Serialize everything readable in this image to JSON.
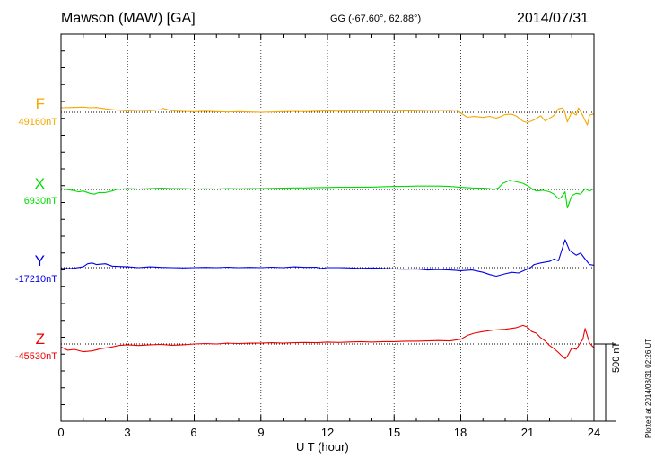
{
  "header": {
    "station": "Mawson (MAW)  [GA]",
    "coords": "GG (-67.60°,  62.88°)",
    "date": "2014/07/31"
  },
  "plotted_note": "Plotted at 2014/08/31 02:26 UT",
  "scale_label": "500 nT",
  "chart_data": {
    "type": "line",
    "xlabel": "U T (hour)",
    "xlim": [
      0,
      24
    ],
    "xticks": [
      0,
      3,
      6,
      9,
      12,
      15,
      18,
      21,
      24
    ],
    "x_tick_labels": [
      "0",
      "3",
      "6",
      "9",
      "12",
      "15",
      "18",
      "21",
      "24"
    ],
    "scale_bar_nT": 500,
    "grid": true,
    "series": [
      {
        "name": "F",
        "baseline_label": "49160nT",
        "baseline_nT": 49160,
        "color": "#f5a800",
        "points": [
          [
            0,
            29
          ],
          [
            0.5,
            31
          ],
          [
            1,
            33
          ],
          [
            1.3,
            29
          ],
          [
            1.6,
            31
          ],
          [
            2,
            22
          ],
          [
            2.5,
            14
          ],
          [
            3,
            9
          ],
          [
            3.5,
            13
          ],
          [
            4,
            10
          ],
          [
            4.5,
            16
          ],
          [
            4.6,
            25
          ],
          [
            4.8,
            17
          ],
          [
            5,
            9
          ],
          [
            5.5,
            6
          ],
          [
            6,
            4
          ],
          [
            6.5,
            7
          ],
          [
            7,
            4
          ],
          [
            7.5,
            2
          ],
          [
            8,
            4
          ],
          [
            8.5,
            2
          ],
          [
            9,
            0
          ],
          [
            9.5,
            2
          ],
          [
            10,
            4
          ],
          [
            10.5,
            6
          ],
          [
            11,
            4
          ],
          [
            11.5,
            7
          ],
          [
            12,
            9
          ],
          [
            12.5,
            7
          ],
          [
            13,
            9
          ],
          [
            13.5,
            10
          ],
          [
            14,
            8
          ],
          [
            14.5,
            10
          ],
          [
            15,
            12
          ],
          [
            15.5,
            8
          ],
          [
            16,
            10
          ],
          [
            16.5,
            12
          ],
          [
            17,
            13
          ],
          [
            17.5,
            11
          ],
          [
            17.8,
            14
          ],
          [
            18,
            -5
          ],
          [
            18.3,
            -32
          ],
          [
            18.6,
            -27
          ],
          [
            19,
            -33
          ],
          [
            19.3,
            -26
          ],
          [
            19.6,
            -38
          ],
          [
            19.8,
            -28
          ],
          [
            20,
            -14
          ],
          [
            20.3,
            -12
          ],
          [
            20.5,
            -24
          ],
          [
            20.8,
            -58
          ],
          [
            21,
            -67
          ],
          [
            21.2,
            -55
          ],
          [
            21.4,
            -42
          ],
          [
            21.6,
            -22
          ],
          [
            21.8,
            -55
          ],
          [
            22,
            -39
          ],
          [
            22.2,
            -20
          ],
          [
            22.4,
            22
          ],
          [
            22.6,
            28
          ],
          [
            22.7,
            -6
          ],
          [
            22.8,
            -62
          ],
          [
            23,
            2
          ],
          [
            23.2,
            -18
          ],
          [
            23.3,
            28
          ],
          [
            23.5,
            -22
          ],
          [
            23.6,
            -53
          ],
          [
            23.7,
            -82
          ],
          [
            23.8,
            -18
          ],
          [
            24,
            -10
          ]
        ]
      },
      {
        "name": "X",
        "baseline_label": "6930nT",
        "baseline_nT": 6930,
        "color": "#00dd00",
        "points": [
          [
            0,
            5
          ],
          [
            0.5,
            -5
          ],
          [
            0.8,
            -15
          ],
          [
            1,
            -10
          ],
          [
            1.3,
            -25
          ],
          [
            1.5,
            -30
          ],
          [
            1.7,
            -20
          ],
          [
            2,
            -20
          ],
          [
            2.3,
            -10
          ],
          [
            2.5,
            0
          ],
          [
            3,
            5
          ],
          [
            3.5,
            3
          ],
          [
            4,
            5
          ],
          [
            4.5,
            8
          ],
          [
            5,
            5
          ],
          [
            5.5,
            6
          ],
          [
            6,
            3
          ],
          [
            6.5,
            4
          ],
          [
            7,
            3
          ],
          [
            7.5,
            6
          ],
          [
            8,
            4
          ],
          [
            8.5,
            5
          ],
          [
            9,
            6
          ],
          [
            9.5,
            7
          ],
          [
            10,
            8
          ],
          [
            10.5,
            10
          ],
          [
            11,
            10
          ],
          [
            11.5,
            12
          ],
          [
            12,
            13
          ],
          [
            12.5,
            14
          ],
          [
            13,
            14
          ],
          [
            13.5,
            15
          ],
          [
            14,
            15
          ],
          [
            14.5,
            18
          ],
          [
            15,
            20
          ],
          [
            15.5,
            20
          ],
          [
            16,
            22
          ],
          [
            16.5,
            22
          ],
          [
            17,
            22
          ],
          [
            17.5,
            20
          ],
          [
            18,
            14
          ],
          [
            18.5,
            10
          ],
          [
            19,
            8
          ],
          [
            19.3,
            5
          ],
          [
            19.5,
            0
          ],
          [
            19.7,
            10
          ],
          [
            19.9,
            40
          ],
          [
            20.2,
            60
          ],
          [
            20.5,
            50
          ],
          [
            20.8,
            40
          ],
          [
            21,
            25
          ],
          [
            21.2,
            5
          ],
          [
            21.4,
            -10
          ],
          [
            21.7,
            -5
          ],
          [
            22,
            -15
          ],
          [
            22.2,
            -30
          ],
          [
            22.4,
            -60
          ],
          [
            22.5,
            -55
          ],
          [
            22.7,
            -15
          ],
          [
            22.8,
            -120
          ],
          [
            23,
            -40
          ],
          [
            23.2,
            -25
          ],
          [
            23.4,
            -30
          ],
          [
            23.6,
            5
          ],
          [
            23.8,
            -10
          ],
          [
            24,
            5
          ]
        ]
      },
      {
        "name": "Y",
        "baseline_label": "-17210nT",
        "baseline_nT": -17210,
        "color": "#0000ee",
        "points": [
          [
            0,
            -5
          ],
          [
            0.5,
            -5
          ],
          [
            1,
            5
          ],
          [
            1.2,
            25
          ],
          [
            1.4,
            30
          ],
          [
            1.6,
            20
          ],
          [
            2,
            25
          ],
          [
            2.3,
            10
          ],
          [
            3,
            5
          ],
          [
            3.5,
            0
          ],
          [
            4,
            5
          ],
          [
            4.5,
            2
          ],
          [
            5,
            0
          ],
          [
            5.5,
            -2
          ],
          [
            6,
            0
          ],
          [
            6.5,
            2
          ],
          [
            7,
            0
          ],
          [
            7.5,
            3
          ],
          [
            8,
            0
          ],
          [
            8.5,
            2
          ],
          [
            9,
            0
          ],
          [
            9.5,
            3
          ],
          [
            10,
            0
          ],
          [
            10.5,
            5
          ],
          [
            11,
            2
          ],
          [
            11.5,
            3
          ],
          [
            11.7,
            -5
          ],
          [
            12,
            0
          ],
          [
            12.5,
            0
          ],
          [
            13,
            -2
          ],
          [
            13.5,
            -5
          ],
          [
            14,
            -2
          ],
          [
            14.5,
            -5
          ],
          [
            15,
            -8
          ],
          [
            15.5,
            -10
          ],
          [
            16,
            -8
          ],
          [
            16.5,
            -15
          ],
          [
            17,
            -12
          ],
          [
            17.5,
            -15
          ],
          [
            18,
            -20
          ],
          [
            18.5,
            -15
          ],
          [
            19,
            -30
          ],
          [
            19.3,
            -45
          ],
          [
            19.6,
            -55
          ],
          [
            20,
            -40
          ],
          [
            20.3,
            -30
          ],
          [
            20.6,
            -35
          ],
          [
            20.9,
            -15
          ],
          [
            21.1,
            -5
          ],
          [
            21.3,
            20
          ],
          [
            21.6,
            30
          ],
          [
            22,
            40
          ],
          [
            22.2,
            55
          ],
          [
            22.4,
            45
          ],
          [
            22.5,
            90
          ],
          [
            22.7,
            180
          ],
          [
            22.9,
            110
          ],
          [
            23.2,
            80
          ],
          [
            23.4,
            95
          ],
          [
            23.6,
            55
          ],
          [
            23.8,
            20
          ],
          [
            24,
            15
          ]
        ]
      },
      {
        "name": "Z",
        "baseline_label": "-45530nT",
        "baseline_nT": -45530,
        "color": "#ee0000",
        "points": [
          [
            0,
            -20
          ],
          [
            0.3,
            -40
          ],
          [
            0.6,
            -35
          ],
          [
            1,
            -50
          ],
          [
            1.4,
            -45
          ],
          [
            1.8,
            -30
          ],
          [
            2.2,
            -22
          ],
          [
            2.6,
            -10
          ],
          [
            3,
            -5
          ],
          [
            3.5,
            -10
          ],
          [
            4,
            -5
          ],
          [
            4.5,
            -3
          ],
          [
            5,
            -8
          ],
          [
            5.5,
            -5
          ],
          [
            6,
            0
          ],
          [
            6.5,
            3
          ],
          [
            7,
            0
          ],
          [
            7.5,
            5
          ],
          [
            8,
            3
          ],
          [
            8.5,
            5
          ],
          [
            9,
            5
          ],
          [
            9.5,
            8
          ],
          [
            10,
            6
          ],
          [
            10.5,
            8
          ],
          [
            11,
            10
          ],
          [
            11.5,
            8
          ],
          [
            12,
            12
          ],
          [
            12.5,
            10
          ],
          [
            13,
            13
          ],
          [
            13.5,
            15
          ],
          [
            14,
            12
          ],
          [
            14.5,
            15
          ],
          [
            15,
            15
          ],
          [
            15.5,
            18
          ],
          [
            16,
            18
          ],
          [
            16.5,
            20
          ],
          [
            17,
            22
          ],
          [
            17.5,
            20
          ],
          [
            18,
            30
          ],
          [
            18.3,
            55
          ],
          [
            18.6,
            70
          ],
          [
            19,
            80
          ],
          [
            19.5,
            90
          ],
          [
            20,
            95
          ],
          [
            20.5,
            105
          ],
          [
            20.8,
            120
          ],
          [
            21,
            110
          ],
          [
            21.2,
            80
          ],
          [
            21.4,
            70
          ],
          [
            21.6,
            40
          ],
          [
            21.8,
            20
          ],
          [
            22,
            -10
          ],
          [
            22.2,
            -30
          ],
          [
            22.4,
            -55
          ],
          [
            22.5,
            -70
          ],
          [
            22.7,
            -95
          ],
          [
            22.8,
            -80
          ],
          [
            23,
            -25
          ],
          [
            23.2,
            -35
          ],
          [
            23.4,
            10
          ],
          [
            23.5,
            30
          ],
          [
            23.6,
            100
          ],
          [
            23.8,
            5
          ],
          [
            24,
            -25
          ]
        ]
      }
    ]
  }
}
